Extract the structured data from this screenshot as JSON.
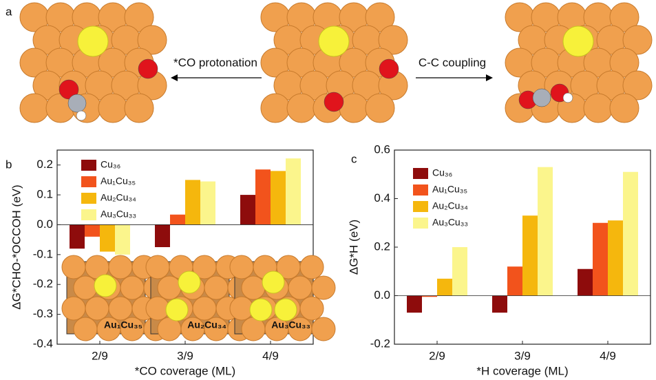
{
  "panel_labels": [
    "a",
    "b",
    "c"
  ],
  "scheme": {
    "left_arrow_label": "*CO protonation",
    "right_arrow_label": "C-C coupling"
  },
  "chart_data": [
    {
      "type": "bar",
      "y_label": "ΔG*CHO-*OCCOH (eV)",
      "x_label": "*CO coverage (ML)",
      "categories": [
        "2/9",
        "3/9",
        "4/9"
      ],
      "series": [
        {
          "name": "Cu₃₆",
          "color": "#8e0c0c",
          "values": [
            -0.08,
            -0.075,
            0.1
          ]
        },
        {
          "name": "Au₁Cu₃₅",
          "color": "#f2531c",
          "values": [
            -0.04,
            0.034,
            0.185
          ]
        },
        {
          "name": "Au₂Cu₃₄",
          "color": "#f5b70d",
          "values": [
            -0.09,
            0.15,
            0.18
          ]
        },
        {
          "name": "Au₃Cu₃₃",
          "color": "#fbf58c",
          "values": [
            -0.1,
            0.145,
            0.222
          ]
        }
      ],
      "ylim": [
        -0.4,
        0.25
      ],
      "yticks": [
        -0.4,
        -0.3,
        -0.2,
        -0.1,
        {
          "value": 0,
          "label": "0.0"
        },
        0.1,
        0.2
      ],
      "legend": "upper left",
      "insets": [
        "Au₁Cu₃₅",
        "Au₂Cu₃₄",
        "Au₃Cu₃₃"
      ]
    },
    {
      "type": "bar",
      "y_label": "ΔG*H (eV)",
      "x_label": "*H coverage (ML)",
      "categories": [
        "2/9",
        "3/9",
        "4/9"
      ],
      "series": [
        {
          "name": "Cu₃₆",
          "color": "#8e0c0c",
          "values": [
            -0.07,
            -0.07,
            0.11
          ]
        },
        {
          "name": "Au₁Cu₃₅",
          "color": "#f2531c",
          "values": [
            -0.005,
            0.12,
            0.3
          ]
        },
        {
          "name": "Au₂Cu₃₄",
          "color": "#f5b70d",
          "values": [
            0.07,
            0.33,
            0.31
          ]
        },
        {
          "name": "Au₃Cu₃₃",
          "color": "#fbf58c",
          "values": [
            0.2,
            0.53,
            0.51
          ]
        }
      ],
      "ylim": [
        -0.2,
        0.6
      ],
      "yticks": [
        -0.2,
        {
          "value": 0,
          "label": "0.0"
        },
        0.2,
        0.4,
        0.6
      ],
      "legend": "upper left"
    }
  ]
}
